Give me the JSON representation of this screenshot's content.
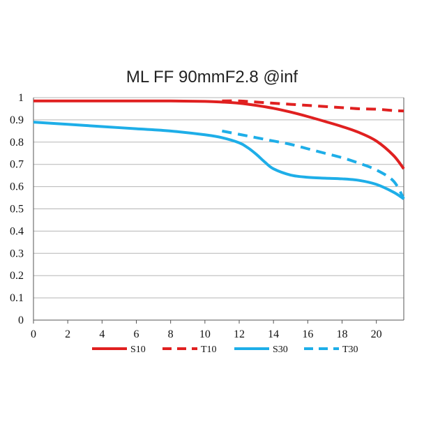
{
  "chart_data": {
    "type": "line",
    "title": "ML FF 90mmF2.8 @inf",
    "xlabel": "",
    "ylabel": "",
    "xlim": [
      0,
      21.6
    ],
    "ylim": [
      0,
      1
    ],
    "x_ticks": [
      0,
      2,
      4,
      6,
      8,
      10,
      12,
      14,
      16,
      18,
      20
    ],
    "y_ticks": [
      0,
      0.1,
      0.2,
      0.3,
      0.4,
      0.5,
      0.6,
      0.7,
      0.8,
      0.9,
      1
    ],
    "y_tick_labels": [
      "0",
      "0.1",
      "0.2",
      "0.3",
      "0.4",
      "0.5",
      "0.6",
      "0.7",
      "0.8",
      "0.9",
      "1"
    ],
    "grid": "horizontal",
    "legend_position": "bottom",
    "series": [
      {
        "name": "S10",
        "color": "#e02020",
        "style": "solid",
        "x": [
          0,
          4,
          8,
          10,
          11,
          12,
          13,
          14,
          15,
          16,
          17,
          18,
          19,
          20,
          21,
          21.6
        ],
        "y": [
          0.985,
          0.985,
          0.985,
          0.983,
          0.98,
          0.975,
          0.965,
          0.952,
          0.935,
          0.915,
          0.893,
          0.87,
          0.843,
          0.805,
          0.74,
          0.68
        ]
      },
      {
        "name": "T10",
        "color": "#e02020",
        "style": "dashed",
        "x": [
          11,
          12,
          13,
          14,
          15,
          16,
          17,
          18,
          19,
          20,
          21,
          21.6
        ],
        "y": [
          0.985,
          0.985,
          0.98,
          0.975,
          0.97,
          0.965,
          0.96,
          0.955,
          0.95,
          0.948,
          0.942,
          0.94
        ]
      },
      {
        "name": "S30",
        "color": "#1eaee8",
        "style": "solid",
        "x": [
          0,
          2,
          4,
          6,
          8,
          10,
          11,
          12,
          12.5,
          13,
          13.5,
          14,
          15,
          16,
          17,
          18,
          19,
          20,
          21,
          21.6
        ],
        "y": [
          0.89,
          0.88,
          0.87,
          0.86,
          0.85,
          0.833,
          0.82,
          0.797,
          0.775,
          0.745,
          0.71,
          0.68,
          0.652,
          0.642,
          0.638,
          0.635,
          0.628,
          0.61,
          0.575,
          0.545
        ]
      },
      {
        "name": "T30",
        "color": "#1eaee8",
        "style": "dashed",
        "x": [
          11,
          12,
          13,
          14,
          15,
          16,
          17,
          18,
          19,
          20,
          21,
          21.6
        ],
        "y": [
          0.85,
          0.835,
          0.82,
          0.805,
          0.79,
          0.77,
          0.75,
          0.73,
          0.705,
          0.675,
          0.625,
          0.545
        ]
      }
    ]
  }
}
